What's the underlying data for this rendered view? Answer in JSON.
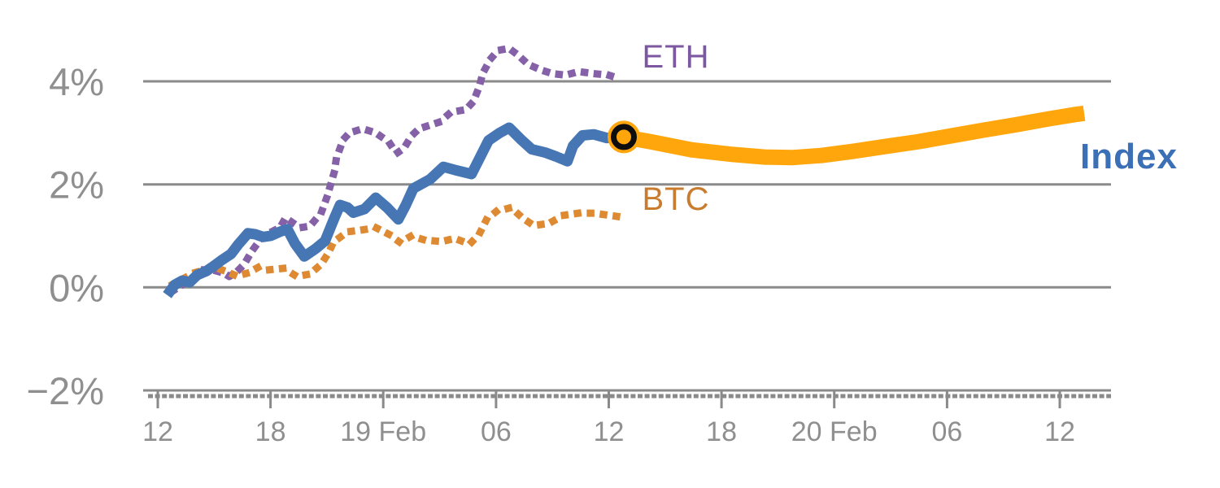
{
  "labels": {
    "eth": "ETH",
    "btc": "BTC",
    "index": "Index"
  },
  "chart_data": {
    "type": "line",
    "title": "",
    "xlabel": "",
    "ylabel": "",
    "grid": "horizontal",
    "grid_color": "#8a8a8a",
    "axis_text_color": "#8f8f8f",
    "x_axis": {
      "unit": "time",
      "note": "hours measured from first tick (18 Feb 12:00)",
      "tick_hours": [
        0,
        6,
        12,
        18,
        24,
        30,
        36,
        42,
        48
      ],
      "tick_labels": [
        "12",
        "18",
        "19 Feb",
        "06",
        "12",
        "18",
        "20 Feb",
        "06",
        "12"
      ]
    },
    "y_axis": {
      "unit": "percent",
      "ticks": [
        4,
        2,
        0,
        -2
      ],
      "tick_labels": [
        "4%",
        "2%",
        "0%",
        "−2%"
      ],
      "range": [
        -2.4,
        5.0
      ]
    },
    "series": [
      {
        "name": "ETH",
        "label": "ETH",
        "color": "#8562a8",
        "label_color": "#7d57a2",
        "style": "dotted",
        "width": 9,
        "points": [
          [
            0.8,
            -0.07
          ],
          [
            1.3,
            0.05
          ],
          [
            1.8,
            0.16
          ],
          [
            2.3,
            0.34
          ],
          [
            2.9,
            0.34
          ],
          [
            3.5,
            0.28
          ],
          [
            3.8,
            0.21
          ],
          [
            4.2,
            0.3
          ],
          [
            4.6,
            0.45
          ],
          [
            5.0,
            0.7
          ],
          [
            5.5,
            0.95
          ],
          [
            5.9,
            1.05
          ],
          [
            6.5,
            1.16
          ],
          [
            6.8,
            1.35
          ],
          [
            7.2,
            1.25
          ],
          [
            7.6,
            1.16
          ],
          [
            8.1,
            1.19
          ],
          [
            8.7,
            1.45
          ],
          [
            9.0,
            1.75
          ],
          [
            9.2,
            2.0
          ],
          [
            9.4,
            2.25
          ],
          [
            9.5,
            2.5
          ],
          [
            9.7,
            2.7
          ],
          [
            9.9,
            2.88
          ],
          [
            10.2,
            3.0
          ],
          [
            10.9,
            3.08
          ],
          [
            11.6,
            3.0
          ],
          [
            12.3,
            2.82
          ],
          [
            12.7,
            2.6
          ],
          [
            13.1,
            2.7
          ],
          [
            13.5,
            2.94
          ],
          [
            13.9,
            3.08
          ],
          [
            14.5,
            3.15
          ],
          [
            15.0,
            3.21
          ],
          [
            15.6,
            3.4
          ],
          [
            16.4,
            3.45
          ],
          [
            16.8,
            3.61
          ],
          [
            17.1,
            3.89
          ],
          [
            17.3,
            4.16
          ],
          [
            17.7,
            4.43
          ],
          [
            18.1,
            4.6
          ],
          [
            18.7,
            4.64
          ],
          [
            19.2,
            4.5
          ],
          [
            19.7,
            4.33
          ],
          [
            20.4,
            4.22
          ],
          [
            21.0,
            4.15
          ],
          [
            21.7,
            4.12
          ],
          [
            22.4,
            4.19
          ],
          [
            23.2,
            4.15
          ],
          [
            24.0,
            4.12
          ],
          [
            24.6,
            4.05
          ]
        ]
      },
      {
        "name": "BTC",
        "label": "BTC",
        "color": "#de8a33",
        "label_color": "#c97c2d",
        "style": "dotted",
        "width": 9,
        "points": [
          [
            0.8,
            0.06
          ],
          [
            1.3,
            0.16
          ],
          [
            2.0,
            0.29
          ],
          [
            2.6,
            0.35
          ],
          [
            3.2,
            0.37
          ],
          [
            3.7,
            0.3
          ],
          [
            4.2,
            0.22
          ],
          [
            4.8,
            0.28
          ],
          [
            5.4,
            0.4
          ],
          [
            5.9,
            0.34
          ],
          [
            6.7,
            0.37
          ],
          [
            7.4,
            0.21
          ],
          [
            8.1,
            0.26
          ],
          [
            8.7,
            0.45
          ],
          [
            9.1,
            0.68
          ],
          [
            9.3,
            0.84
          ],
          [
            9.5,
            0.92
          ],
          [
            10.1,
            1.08
          ],
          [
            10.8,
            1.11
          ],
          [
            11.6,
            1.16
          ],
          [
            12.3,
            1.03
          ],
          [
            12.9,
            0.87
          ],
          [
            13.5,
            1.0
          ],
          [
            14.2,
            0.92
          ],
          [
            15.1,
            0.89
          ],
          [
            15.8,
            0.95
          ],
          [
            16.6,
            0.84
          ],
          [
            17.1,
            1.03
          ],
          [
            17.5,
            1.32
          ],
          [
            18.0,
            1.47
          ],
          [
            18.8,
            1.55
          ],
          [
            19.4,
            1.35
          ],
          [
            20.0,
            1.2
          ],
          [
            20.8,
            1.24
          ],
          [
            21.6,
            1.4
          ],
          [
            22.4,
            1.44
          ],
          [
            23.2,
            1.44
          ],
          [
            24.0,
            1.4
          ],
          [
            24.6,
            1.37
          ]
        ]
      },
      {
        "name": "Index",
        "label": "Index",
        "color": "#4677b4",
        "label_color": "#3b6fb6",
        "style": "solid",
        "width": 13,
        "points": [
          [
            0.5,
            -0.15
          ],
          [
            0.9,
            0.05
          ],
          [
            1.3,
            0.13
          ],
          [
            1.7,
            0.1
          ],
          [
            2.1,
            0.24
          ],
          [
            2.6,
            0.32
          ],
          [
            3.0,
            0.42
          ],
          [
            3.4,
            0.53
          ],
          [
            3.9,
            0.65
          ],
          [
            4.3,
            0.84
          ],
          [
            4.8,
            1.05
          ],
          [
            5.2,
            1.03
          ],
          [
            5.6,
            0.98
          ],
          [
            6.0,
            1.0
          ],
          [
            6.5,
            1.08
          ],
          [
            6.9,
            1.13
          ],
          [
            7.3,
            0.85
          ],
          [
            7.8,
            0.6
          ],
          [
            8.4,
            0.75
          ],
          [
            8.9,
            0.9
          ],
          [
            9.4,
            1.35
          ],
          [
            9.7,
            1.6
          ],
          [
            10.1,
            1.55
          ],
          [
            10.4,
            1.45
          ],
          [
            11.0,
            1.52
          ],
          [
            11.6,
            1.74
          ],
          [
            12.2,
            1.55
          ],
          [
            12.8,
            1.32
          ],
          [
            13.2,
            1.6
          ],
          [
            13.6,
            1.92
          ],
          [
            13.9,
            1.98
          ],
          [
            14.5,
            2.1
          ],
          [
            15.2,
            2.34
          ],
          [
            15.8,
            2.28
          ],
          [
            16.7,
            2.2
          ],
          [
            17.6,
            2.85
          ],
          [
            18.2,
            3.0
          ],
          [
            18.7,
            3.1
          ],
          [
            19.3,
            2.88
          ],
          [
            19.9,
            2.68
          ],
          [
            20.6,
            2.62
          ],
          [
            21.2,
            2.54
          ],
          [
            21.8,
            2.45
          ],
          [
            22.1,
            2.75
          ],
          [
            22.6,
            2.95
          ],
          [
            23.2,
            2.97
          ],
          [
            23.9,
            2.9
          ],
          [
            24.8,
            2.92
          ]
        ]
      },
      {
        "name": "Index forecast",
        "label": "",
        "color": "#ffa60d",
        "label_color": "#ffa60d",
        "style": "solid",
        "width": 19,
        "points": [
          [
            24.8,
            2.92
          ],
          [
            26.2,
            2.83
          ],
          [
            28.4,
            2.67
          ],
          [
            30.6,
            2.58
          ],
          [
            32.3,
            2.53
          ],
          [
            33.8,
            2.52
          ],
          [
            35.3,
            2.56
          ],
          [
            37.0,
            2.64
          ],
          [
            38.8,
            2.74
          ],
          [
            40.5,
            2.83
          ],
          [
            42.2,
            2.94
          ],
          [
            43.9,
            3.05
          ],
          [
            45.7,
            3.16
          ],
          [
            47.4,
            3.27
          ],
          [
            48.7,
            3.35
          ],
          [
            49.3,
            3.38
          ]
        ]
      }
    ],
    "marker": {
      "series": "Index forecast",
      "at": [
        24.8,
        2.92
      ],
      "shape": "circle-black-ring",
      "halo_color": "#ffa60d",
      "ring_color": "#0d0d0d"
    }
  }
}
